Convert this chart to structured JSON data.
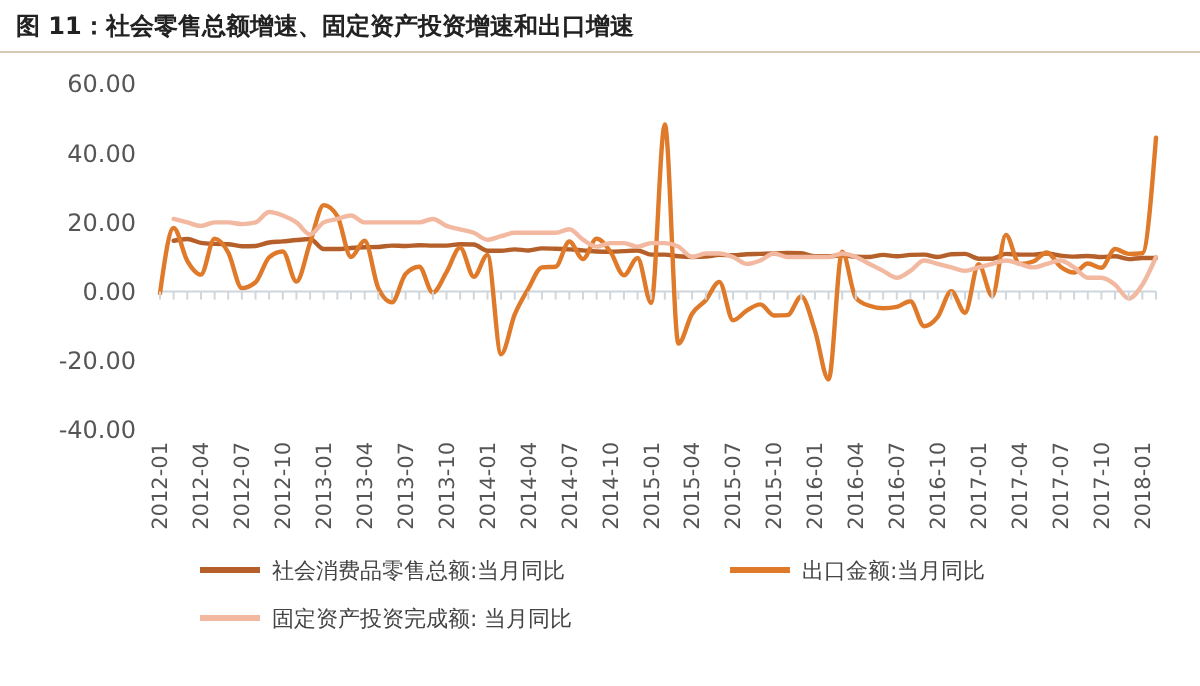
{
  "chart_data": {
    "type": "line",
    "title": "图 11：社会零售总额增速、固定资产投资增速和出口增速",
    "categories": [
      "2012-01",
      null,
      null,
      "2012-04",
      null,
      null,
      "2012-07",
      null,
      null,
      "2012-10",
      null,
      null,
      "2013-01",
      null,
      null,
      "2013-04",
      null,
      null,
      "2013-07",
      null,
      null,
      "2013-10",
      null,
      null,
      "2014-01",
      null,
      null,
      "2014-04",
      null,
      null,
      "2014-07",
      null,
      null,
      "2014-10",
      null,
      null,
      "2015-01",
      null,
      null,
      "2015-04",
      null,
      null,
      "2015-07",
      null,
      null,
      "2015-10",
      null,
      null,
      "2016-01",
      null,
      null,
      "2016-04",
      null,
      null,
      "2016-07",
      null,
      null,
      "2016-10",
      null,
      null,
      "2017-01",
      null,
      null,
      "2017-04",
      null,
      null,
      "2017-07",
      null,
      null,
      "2017-10",
      null,
      null,
      "2018-01",
      null
    ],
    "series": [
      {
        "name": "社会消费品零售总额:当月同比",
        "color": "#b5602a",
        "values": [
          null,
          14.7,
          15.2,
          14.1,
          13.8,
          13.7,
          13.1,
          13.2,
          14.2,
          14.5,
          14.9,
          15.2,
          12.3,
          12.3,
          12.6,
          12.8,
          12.9,
          13.3,
          13.2,
          13.4,
          13.3,
          13.3,
          13.7,
          13.6,
          11.8,
          11.8,
          12.2,
          11.9,
          12.5,
          12.4,
          12.2,
          11.9,
          11.6,
          11.5,
          11.7,
          11.9,
          10.7,
          10.7,
          10.2,
          10.0,
          10.1,
          10.6,
          10.5,
          10.8,
          10.9,
          11.0,
          11.2,
          11.1,
          10.2,
          10.2,
          10.5,
          10.1,
          10.0,
          10.6,
          10.2,
          10.6,
          10.7,
          10.0,
          10.8,
          10.9,
          9.5,
          9.5,
          10.9,
          10.7,
          10.7,
          11.0,
          10.4,
          10.1,
          10.3,
          10.0,
          10.2,
          9.4,
          9.7,
          9.7
        ]
      },
      {
        "name": "出口金额:当月同比",
        "color": "#e07a2b",
        "values": [
          -0.5,
          18.4,
          8.9,
          4.9,
          15.3,
          11.3,
          1.0,
          2.7,
          9.9,
          11.6,
          2.9,
          14.1,
          25.0,
          21.8,
          10.0,
          14.7,
          1.0,
          -3.1,
          5.1,
          7.2,
          -0.3,
          5.6,
          12.7,
          4.3,
          10.6,
          -18.1,
          -6.6,
          0.9,
          7.0,
          7.2,
          14.5,
          9.4,
          15.3,
          11.6,
          4.7,
          9.7,
          -3.3,
          48.3,
          -15.0,
          -6.4,
          -2.5,
          2.8,
          -8.3,
          -5.5,
          -3.7,
          -6.9,
          -6.8,
          -1.4,
          -11.2,
          -25.4,
          11.5,
          -1.8,
          -4.1,
          -4.8,
          -4.4,
          -2.8,
          -10.0,
          -7.3,
          0.1,
          -6.1,
          7.9,
          -1.3,
          16.4,
          8.0,
          8.7,
          11.3,
          7.2,
          5.5,
          8.1,
          6.9,
          12.3,
          10.9,
          11.1,
          44.5
        ]
      },
      {
        "name": "固定资产投资完成额: 当月同比",
        "color": "#f2b8a0",
        "values": [
          null,
          21,
          20,
          19,
          20,
          20,
          19.5,
          20,
          23,
          22,
          20,
          16.5,
          20,
          21,
          22,
          20,
          20,
          20,
          20,
          20,
          21,
          19,
          18,
          17,
          15,
          16,
          17,
          17,
          17,
          17,
          18,
          15,
          13,
          14,
          14,
          13,
          14,
          14,
          13,
          10,
          11,
          11,
          10,
          8,
          9,
          11,
          10,
          10,
          10,
          10,
          11,
          10,
          8,
          6,
          4,
          6,
          9,
          8,
          7,
          6,
          7,
          8,
          9,
          8,
          7,
          8,
          9,
          7,
          4,
          4,
          2,
          -2,
          2,
          10
        ]
      }
    ],
    "ylim": [
      -40,
      60
    ],
    "yticks": [
      {
        "value": -40,
        "label": "-40.00"
      },
      {
        "value": -20,
        "label": "-20.00"
      },
      {
        "value": 0,
        "label": "0.00"
      },
      {
        "value": 20,
        "label": "20.00"
      },
      {
        "value": 40,
        "label": "40.00"
      },
      {
        "value": 60,
        "label": "60.00"
      }
    ],
    "legend": "bottom"
  }
}
